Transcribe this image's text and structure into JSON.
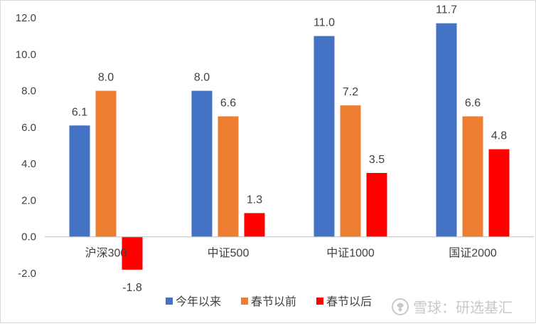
{
  "chart_data": {
    "type": "bar",
    "categories": [
      "沪深300",
      "中证500",
      "中证1000",
      "国证2000"
    ],
    "series": [
      {
        "name": "今年以来",
        "color": "#4472C4",
        "values": [
          6.1,
          8.0,
          11.0,
          11.7
        ]
      },
      {
        "name": "春节以前",
        "color": "#ED7D31",
        "values": [
          8.0,
          6.6,
          7.2,
          6.6
        ]
      },
      {
        "name": "春节以后",
        "color": "#FF0000",
        "values": [
          -1.8,
          1.3,
          3.5,
          4.8
        ]
      }
    ],
    "ylim": [
      -2.0,
      12.0
    ],
    "yticks": [
      "-2.0",
      "0.0",
      "2.0",
      "4.0",
      "6.0",
      "8.0",
      "10.0",
      "12.0"
    ],
    "grid": false,
    "legend_position": "bottom"
  },
  "watermark": {
    "text": "雪球：研选基汇",
    "icon": "snowball-logo-icon"
  }
}
